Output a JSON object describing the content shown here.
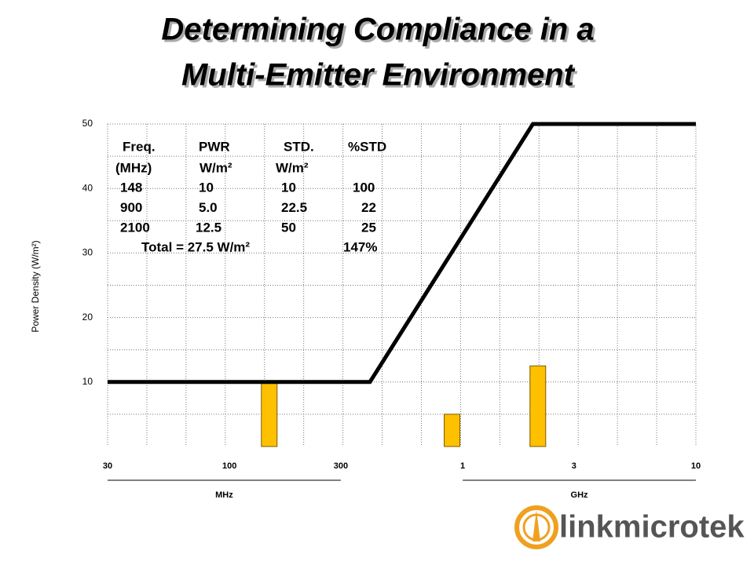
{
  "chart_data": {
    "type": "combo",
    "title": [
      "Determining Compliance in a",
      "Multi-Emitter Environment"
    ],
    "y_label": "Power Density (W/m²)",
    "xscale": "log",
    "xlim": [
      30,
      10000
    ],
    "ylim": [
      0,
      50
    ],
    "yticks": [
      10,
      20,
      30,
      40,
      50
    ],
    "minor_yticks": [
      5,
      15,
      25,
      35,
      45
    ],
    "xticks": [
      30,
      100,
      300,
      {
        "value": 1000,
        "label": "1"
      },
      {
        "value": 3000,
        "label": "3"
      },
      {
        "value": 10000,
        "label": "10"
      }
    ],
    "x_unit_groups": [
      {
        "label": "MHz",
        "range": [
          30,
          300
        ]
      },
      {
        "label": "GHz",
        "range": [
          1000,
          10000
        ]
      }
    ],
    "grid": true,
    "series": [
      {
        "kind": "bar",
        "color": "#ffc000",
        "x": [
          148,
          900,
          2100
        ],
        "values": [
          10,
          5,
          12.5
        ]
      },
      {
        "kind": "line",
        "color": "#000000",
        "x": [
          30,
          400,
          2000,
          10000
        ],
        "values": [
          10,
          10,
          50,
          50
        ]
      }
    ],
    "table": {
      "header": [
        "Freq.",
        "PWR",
        "STD.",
        "%STD"
      ],
      "units": [
        "(MHz)",
        "W/m²",
        "W/m²"
      ],
      "rows": [
        [
          "148",
          "10",
          "10",
          "100"
        ],
        [
          "900",
          "5.0",
          "22.5",
          "22"
        ],
        [
          "2100",
          "12.5",
          "50",
          "25"
        ]
      ],
      "total": [
        "Total = 27.5 W/m²",
        "147%"
      ]
    }
  },
  "logo": "linkmicrotek"
}
